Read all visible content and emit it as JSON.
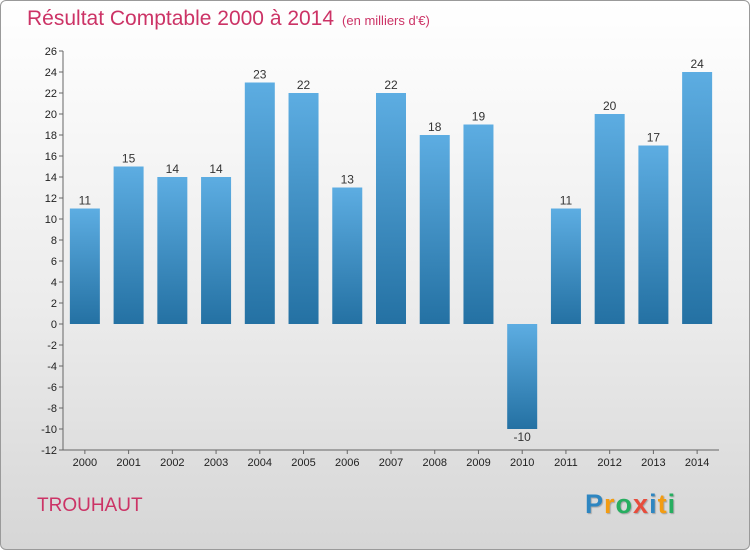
{
  "header": {
    "title": "Résultat Comptable 2000 à 2014",
    "unit": "(en milliers d'€)"
  },
  "footer": {
    "commune": "TROUHAUT"
  },
  "logo": {
    "letters": [
      "P",
      "r",
      "o",
      "x",
      "i",
      "t",
      "i"
    ],
    "colors": [
      "#2e86c1",
      "#f39c12",
      "#27ae60",
      "#e74c3c",
      "#2e86c1",
      "#f39c12",
      "#27ae60"
    ]
  },
  "colors": {
    "bar_top": "#5dade2",
    "bar_bottom": "#2471a3"
  },
  "chart_data": {
    "type": "bar",
    "title": "Résultat Comptable 2000 à 2014",
    "subtitle": "(en milliers d'€)",
    "categories": [
      "2000",
      "2001",
      "2002",
      "2003",
      "2004",
      "2005",
      "2006",
      "2007",
      "2008",
      "2009",
      "2010",
      "2011",
      "2012",
      "2013",
      "2014"
    ],
    "values": [
      11,
      15,
      14,
      14,
      23,
      22,
      13,
      22,
      18,
      19,
      -10,
      11,
      20,
      17,
      24
    ],
    "value_labels": [
      "11",
      "15",
      "14",
      "14",
      "23",
      "22",
      "13",
      "22",
      "18",
      "19",
      "-10",
      "11",
      "20",
      "17",
      "24"
    ],
    "yticks": [
      "-12",
      "-10",
      "-8",
      "-6",
      "-4",
      "-2",
      "0",
      "2",
      "4",
      "6",
      "8",
      "10",
      "12",
      "14",
      "16",
      "18",
      "20",
      "22",
      "24",
      "26"
    ],
    "ylim": [
      -12,
      26
    ],
    "grid": false,
    "legend": "none"
  }
}
